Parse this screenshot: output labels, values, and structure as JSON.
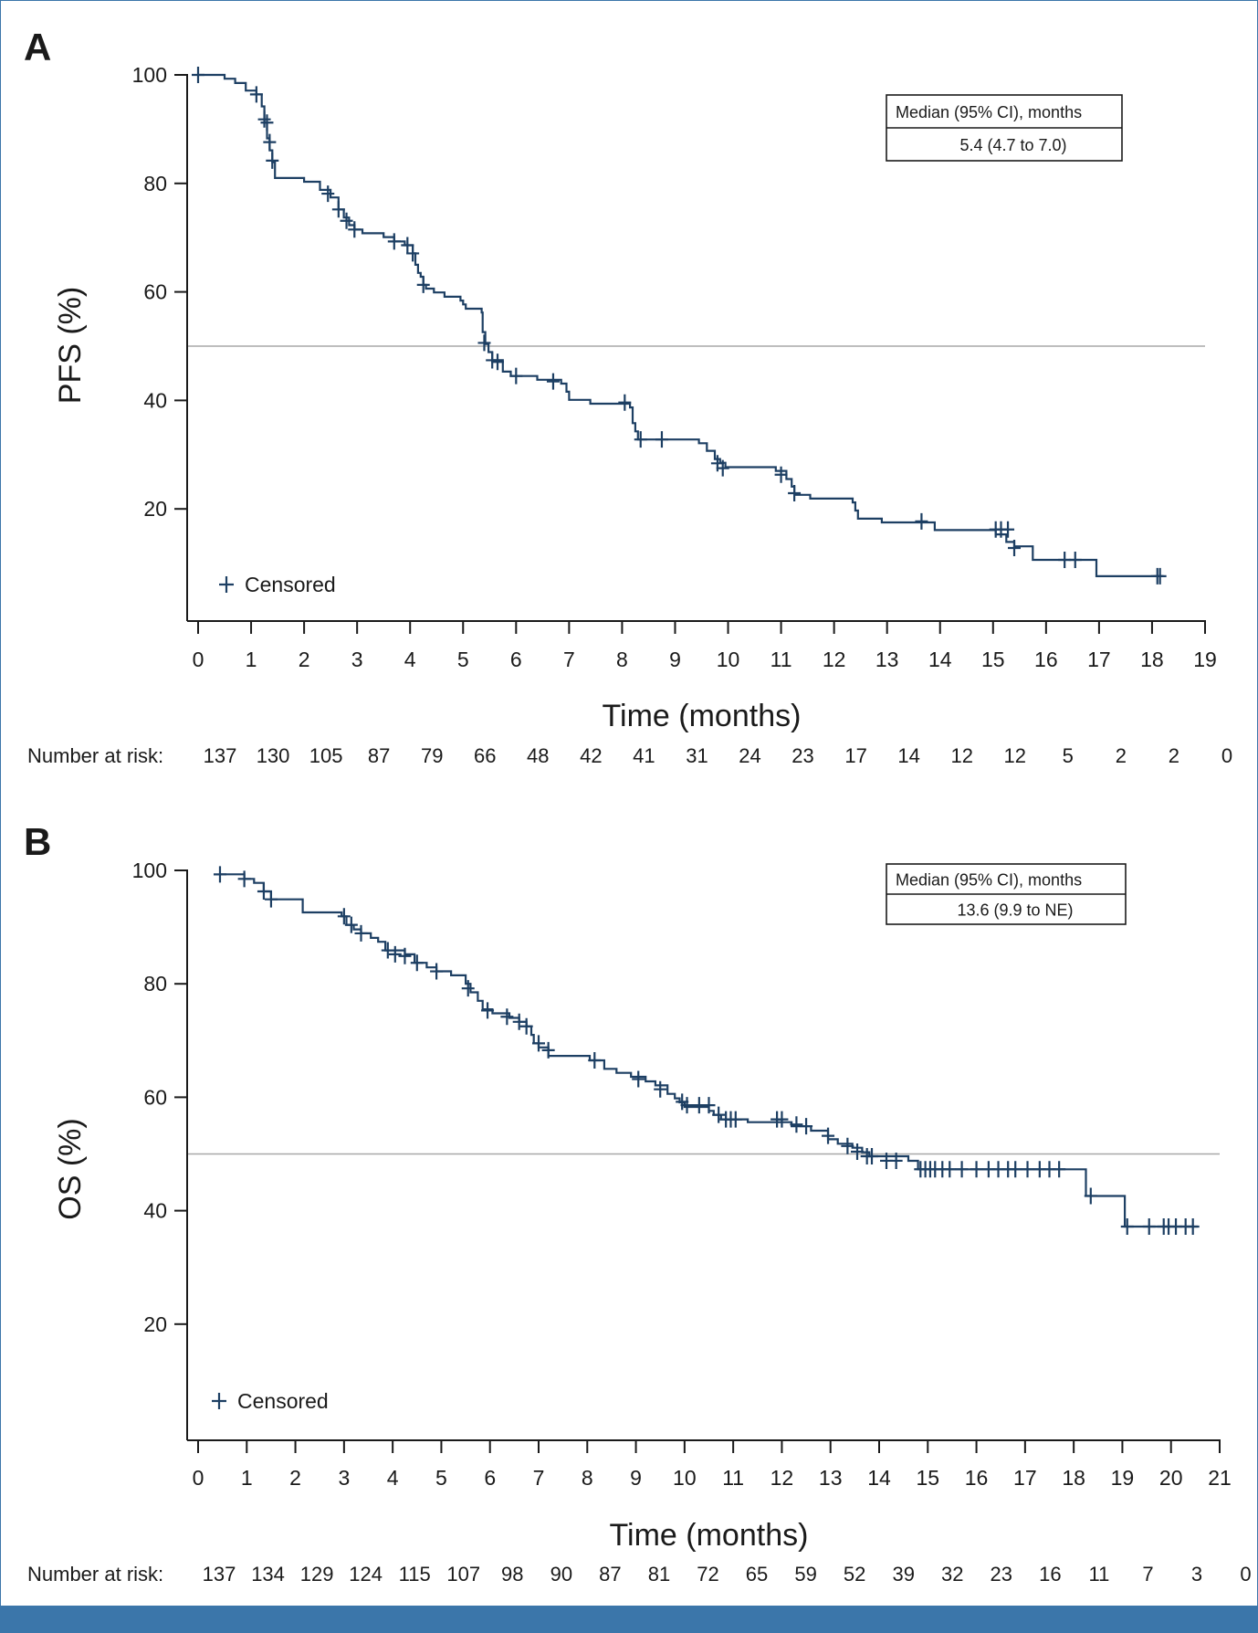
{
  "colors": {
    "curve": "#1d3f63",
    "axis": "#1a1a1a",
    "reference_line": "#a8a8a8",
    "frame": "#3b76aa"
  },
  "chart_data": [
    {
      "panel": "A",
      "type": "line",
      "subtype": "kaplan-meier",
      "title": "",
      "xlabel": "Time (months)",
      "ylabel": "PFS (%)",
      "xlim": [
        0,
        19
      ],
      "ylim": [
        0,
        100
      ],
      "x_ticks": [
        0,
        1,
        2,
        3,
        4,
        5,
        6,
        7,
        8,
        9,
        10,
        11,
        12,
        13,
        14,
        15,
        16,
        17,
        18,
        19
      ],
      "y_ticks": [
        20,
        40,
        60,
        80,
        100
      ],
      "reference_line_y": 50,
      "median_box": {
        "header": "Median (95% CI), months",
        "value": "5.4 (4.7 to 7.0)"
      },
      "legend": {
        "label": "Censored",
        "position": "bottom-left"
      },
      "risk_table": {
        "label": "Number at risk:",
        "values": [
          "137",
          "130",
          "105",
          "87",
          "79",
          "66",
          "48",
          "42",
          "41",
          "31",
          "24",
          "23",
          "17",
          "14",
          "12",
          "12",
          "5",
          "2",
          "2",
          "0"
        ]
      },
      "steps": [
        [
          0,
          100
        ],
        [
          0.5,
          99.3
        ],
        [
          0.7,
          98.5
        ],
        [
          0.9,
          97.1
        ],
        [
          1.1,
          96.4
        ],
        [
          1.2,
          94.2
        ],
        [
          1.25,
          91.2
        ],
        [
          1.3,
          88.3
        ],
        [
          1.35,
          86.1
        ],
        [
          1.4,
          83.9
        ],
        [
          1.45,
          81
        ],
        [
          2.0,
          80.3
        ],
        [
          2.3,
          78.8
        ],
        [
          2.5,
          77.4
        ],
        [
          2.65,
          75.2
        ],
        [
          2.75,
          73.7
        ],
        [
          2.85,
          72.3
        ],
        [
          2.95,
          71.5
        ],
        [
          3.1,
          70.8
        ],
        [
          3.5,
          70.1
        ],
        [
          3.7,
          69.3
        ],
        [
          3.9,
          68.6
        ],
        [
          4.05,
          67.1
        ],
        [
          4.1,
          65
        ],
        [
          4.15,
          63.5
        ],
        [
          4.2,
          62.8
        ],
        [
          4.25,
          61.3
        ],
        [
          4.3,
          60.6
        ],
        [
          4.45,
          59.9
        ],
        [
          4.65,
          59.1
        ],
        [
          4.95,
          58.4
        ],
        [
          5.0,
          57.7
        ],
        [
          5.05,
          56.9
        ],
        [
          5.35,
          56.2
        ],
        [
          5.37,
          52.6
        ],
        [
          5.42,
          50.4
        ],
        [
          5.48,
          48.9
        ],
        [
          5.55,
          47.4
        ],
        [
          5.75,
          45.3
        ],
        [
          5.9,
          44.5
        ],
        [
          6.4,
          43.8
        ],
        [
          6.85,
          43.1
        ],
        [
          6.95,
          41.6
        ],
        [
          7.0,
          40.1
        ],
        [
          7.4,
          39.4
        ],
        [
          8.15,
          38.7
        ],
        [
          8.2,
          35.8
        ],
        [
          8.25,
          34.3
        ],
        [
          8.3,
          32.8
        ],
        [
          9.45,
          32.1
        ],
        [
          9.6,
          30.7
        ],
        [
          9.75,
          29.2
        ],
        [
          9.85,
          28.5
        ],
        [
          9.95,
          27.7
        ],
        [
          10.9,
          27
        ],
        [
          11.1,
          25.5
        ],
        [
          11.2,
          24.1
        ],
        [
          11.25,
          22.6
        ],
        [
          11.55,
          21.9
        ],
        [
          12.35,
          21.2
        ],
        [
          12.4,
          19.7
        ],
        [
          12.45,
          18.2
        ],
        [
          12.9,
          17.5
        ],
        [
          13.9,
          16.1
        ],
        [
          15.05,
          15.3
        ],
        [
          15.25,
          13.9
        ],
        [
          15.4,
          13.1
        ],
        [
          15.75,
          10.6
        ],
        [
          16.95,
          7.6
        ],
        [
          18.2,
          7.6
        ]
      ],
      "censored": [
        [
          0,
          100
        ],
        [
          1.1,
          96.4
        ],
        [
          1.25,
          91.8
        ],
        [
          1.3,
          91.2
        ],
        [
          1.35,
          87.6
        ],
        [
          1.4,
          84.2
        ],
        [
          2.45,
          78.1
        ],
        [
          2.65,
          75.2
        ],
        [
          2.8,
          73.1
        ],
        [
          2.95,
          71.5
        ],
        [
          3.7,
          69.3
        ],
        [
          3.95,
          68.6
        ],
        [
          4.05,
          67.1
        ],
        [
          4.25,
          61.3
        ],
        [
          5.4,
          50.6
        ],
        [
          5.55,
          47.4
        ],
        [
          5.65,
          47.1
        ],
        [
          6.0,
          44.5
        ],
        [
          6.7,
          43.5
        ],
        [
          8.05,
          39.6
        ],
        [
          8.35,
          32.8
        ],
        [
          8.75,
          32.8
        ],
        [
          9.8,
          28.4
        ],
        [
          9.9,
          27.5
        ],
        [
          11.0,
          26.3
        ],
        [
          11.25,
          22.9
        ],
        [
          13.65,
          17.7
        ],
        [
          15.05,
          16.2
        ],
        [
          15.15,
          16.2
        ],
        [
          15.28,
          16.2
        ],
        [
          15.4,
          12.8
        ],
        [
          16.35,
          10.6
        ],
        [
          16.55,
          10.6
        ],
        [
          18.1,
          7.6
        ],
        [
          18.15,
          7.6
        ]
      ]
    },
    {
      "panel": "B",
      "type": "line",
      "subtype": "kaplan-meier",
      "title": "",
      "xlabel": "Time (months)",
      "ylabel": "OS (%)",
      "xlim": [
        0,
        21
      ],
      "ylim": [
        0,
        100
      ],
      "x_ticks": [
        0,
        1,
        2,
        3,
        4,
        5,
        6,
        7,
        8,
        9,
        10,
        11,
        12,
        13,
        14,
        15,
        16,
        17,
        18,
        19,
        20,
        21
      ],
      "y_ticks": [
        20,
        40,
        60,
        80,
        100
      ],
      "reference_line_y": 50,
      "median_box": {
        "header": "Median (95% CI), months",
        "value": "13.6 (9.9 to NE)"
      },
      "legend": {
        "label": "Censored",
        "position": "bottom-left"
      },
      "risk_table": {
        "label": "Number at risk:",
        "values": [
          "137",
          "134",
          "129",
          "124",
          "115",
          "107",
          "98",
          "90",
          "87",
          "81",
          "72",
          "65",
          "59",
          "52",
          "39",
          "32",
          "23",
          "16",
          "11",
          "7",
          "3",
          "0"
        ]
      },
      "steps": [
        [
          0.45,
          99.3
        ],
        [
          0.95,
          98.5
        ],
        [
          1.15,
          97.8
        ],
        [
          1.35,
          96.3
        ],
        [
          1.5,
          94.9
        ],
        [
          2.15,
          92.6
        ],
        [
          2.95,
          91.9
        ],
        [
          3.05,
          90.4
        ],
        [
          3.2,
          89.6
        ],
        [
          3.35,
          88.9
        ],
        [
          3.55,
          88.1
        ],
        [
          3.7,
          87.4
        ],
        [
          3.85,
          85.9
        ],
        [
          4.25,
          85.2
        ],
        [
          4.45,
          83.7
        ],
        [
          4.7,
          82.9
        ],
        [
          4.9,
          82.2
        ],
        [
          5.2,
          81.5
        ],
        [
          5.5,
          80
        ],
        [
          5.6,
          78.5
        ],
        [
          5.75,
          77
        ],
        [
          5.85,
          75.5
        ],
        [
          6.05,
          74.8
        ],
        [
          6.4,
          74
        ],
        [
          6.6,
          73.3
        ],
        [
          6.75,
          72.5
        ],
        [
          6.85,
          71
        ],
        [
          6.9,
          69.5
        ],
        [
          7.0,
          68.8
        ],
        [
          7.2,
          67.3
        ],
        [
          8.05,
          66.5
        ],
        [
          8.35,
          65
        ],
        [
          8.6,
          64.3
        ],
        [
          8.9,
          63.6
        ],
        [
          9.2,
          62.8
        ],
        [
          9.4,
          62.1
        ],
        [
          9.65,
          60.6
        ],
        [
          9.8,
          59.8
        ],
        [
          9.9,
          59.1
        ],
        [
          10.0,
          58.3
        ],
        [
          10.5,
          57.6
        ],
        [
          10.6,
          56.9
        ],
        [
          10.75,
          56.1
        ],
        [
          11.3,
          55.6
        ],
        [
          12.2,
          54.9
        ],
        [
          12.6,
          54.1
        ],
        [
          12.95,
          52.6
        ],
        [
          13.15,
          51.8
        ],
        [
          13.45,
          51.1
        ],
        [
          13.65,
          50.3
        ],
        [
          13.8,
          49.6
        ],
        [
          14.6,
          48.8
        ],
        [
          14.8,
          47.3
        ],
        [
          18.25,
          42.6
        ],
        [
          19.05,
          37.2
        ],
        [
          20.55,
          37.2
        ]
      ],
      "censored": [
        [
          0.45,
          99.3
        ],
        [
          0.95,
          98.5
        ],
        [
          1.35,
          96.3
        ],
        [
          1.5,
          94.9
        ],
        [
          3.0,
          91.9
        ],
        [
          3.15,
          90.4
        ],
        [
          3.35,
          88.9
        ],
        [
          3.9,
          85.9
        ],
        [
          4.05,
          85.2
        ],
        [
          4.25,
          84.9
        ],
        [
          4.5,
          83.7
        ],
        [
          4.9,
          82.2
        ],
        [
          5.55,
          79.2
        ],
        [
          5.95,
          75.3
        ],
        [
          6.35,
          74.2
        ],
        [
          6.6,
          73.3
        ],
        [
          6.75,
          72.5
        ],
        [
          7.0,
          69.5
        ],
        [
          7.2,
          68.3
        ],
        [
          8.15,
          66.5
        ],
        [
          9.05,
          63.2
        ],
        [
          9.5,
          61.4
        ],
        [
          9.95,
          59.2
        ],
        [
          10.05,
          58.6
        ],
        [
          10.3,
          58.6
        ],
        [
          10.5,
          58.6
        ],
        [
          10.7,
          56.9
        ],
        [
          10.85,
          56.1
        ],
        [
          10.95,
          56.1
        ],
        [
          11.05,
          56.1
        ],
        [
          11.9,
          56.1
        ],
        [
          12.0,
          56.1
        ],
        [
          12.3,
          55.2
        ],
        [
          12.5,
          54.9
        ],
        [
          12.95,
          53.2
        ],
        [
          13.35,
          51.4
        ],
        [
          13.55,
          50.4
        ],
        [
          13.75,
          49.6
        ],
        [
          13.85,
          49.6
        ],
        [
          14.15,
          48.8
        ],
        [
          14.35,
          48.8
        ],
        [
          14.85,
          47.3
        ],
        [
          14.95,
          47.3
        ],
        [
          15.05,
          47.3
        ],
        [
          15.15,
          47.3
        ],
        [
          15.3,
          47.3
        ],
        [
          15.45,
          47.3
        ],
        [
          15.7,
          47.3
        ],
        [
          16.0,
          47.3
        ],
        [
          16.25,
          47.3
        ],
        [
          16.45,
          47.3
        ],
        [
          16.65,
          47.3
        ],
        [
          16.8,
          47.3
        ],
        [
          17.05,
          47.3
        ],
        [
          17.3,
          47.3
        ],
        [
          17.5,
          47.3
        ],
        [
          17.7,
          47.3
        ],
        [
          18.35,
          42.6
        ],
        [
          19.1,
          37.2
        ],
        [
          19.55,
          37.2
        ],
        [
          19.85,
          37.2
        ],
        [
          19.95,
          37.2
        ],
        [
          20.1,
          37.2
        ],
        [
          20.3,
          37.2
        ],
        [
          20.45,
          37.2
        ]
      ]
    }
  ]
}
